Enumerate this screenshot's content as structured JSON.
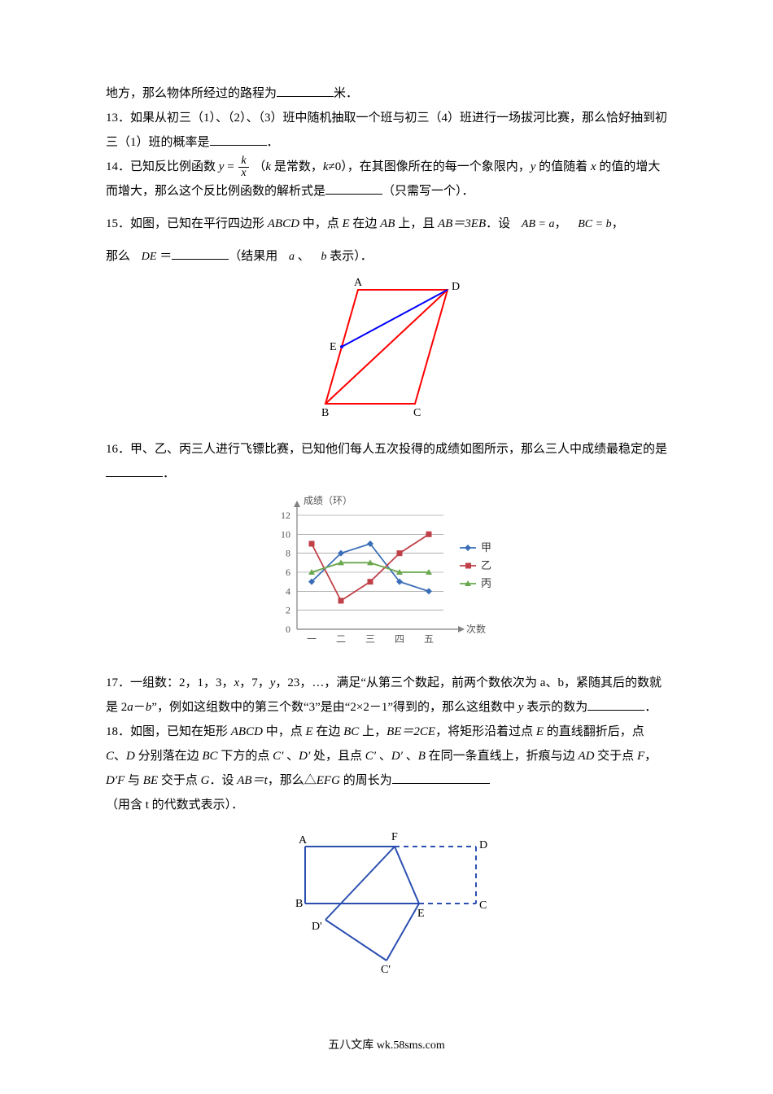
{
  "q12_tail": "地方，那么物体所经过的路程为",
  "q12_unit": "米．",
  "q13": "13．如果从初三（1）、（2）、（3）班中随机抽取一个班与初三（4）班进行一场拔河比赛，那么恰好抽到初三（1）班的概率是",
  "q13_end": "．",
  "q14_a": "14．已知反比例函数 ",
  "q14_y": "y",
  "q14_eq": " = ",
  "q14_b": "（",
  "q14_k": "k",
  "q14_c": " 是常数，",
  "q14_d": "≠0），在其图像所在的每一个象限内，",
  "q14_e": " 的值随着 ",
  "q14_x": "x",
  "q14_f": " 的值的增大而增大，那么这个反比例函数的解析式是",
  "q14_g": "（只需写一个）．",
  "q15_a": "15．如图，已知在平行四边形 ",
  "q15_abcd": "ABCD",
  "q15_b": " 中，点 ",
  "q15_E": "E",
  "q15_c": " 在边 ",
  "q15_AB": "AB",
  "q15_d": " 上，且 ",
  "q15_eqn1": "AB＝3EB",
  "q15_e": "．设 ",
  "q15_ABvec": "AB = a",
  "q15_BCvec": "BC = b",
  "q15_comma": "，",
  "q15_f": "那么 ",
  "q15_DE": "DE",
  "q15_g": " ＝",
  "q15_h": "（结果用 ",
  "q15_avar": "a",
  "q15_i": " 、",
  "q15_bvar": "b",
  "q15_j": " 表示）．",
  "fig15": {
    "labels": {
      "A": "A",
      "B": "B",
      "C": "C",
      "D": "D",
      "E": "E"
    },
    "stroke_red": "#ff0000",
    "stroke_blue": "#0000ff",
    "stroke_w": 2
  },
  "q16_a": "16．甲、乙、丙三人进行飞镖比赛，已知他们每人五次投得的成绩如图所示，那么三人中成绩最稳定的是",
  "q16_b": "．",
  "chart16": {
    "y_label": "成绩（环）",
    "x_label": "次数",
    "y_ticks": [
      "0",
      "2",
      "4",
      "6",
      "8",
      "10",
      "12"
    ],
    "x_ticks": [
      "一",
      "二",
      "三",
      "四",
      "五"
    ],
    "axis_color": "#808080",
    "grid_color": "#808080",
    "tick_font": 12,
    "series": {
      "jia": {
        "label": "甲",
        "color": "#3a6fb7",
        "marker": "diamond",
        "pts": [
          5,
          8,
          9,
          5,
          4
        ]
      },
      "yi": {
        "label": "乙",
        "color": "#c04048",
        "marker": "square",
        "pts": [
          9,
          3,
          5,
          8,
          10
        ]
      },
      "bing": {
        "label": "丙",
        "color": "#6aa84f",
        "marker": "triangle",
        "pts": [
          6,
          7,
          7,
          6,
          6
        ]
      }
    }
  },
  "q17_a": "17．一组数：2，1，3，",
  "q17_x": "x",
  "q17_b": "，7，",
  "q17_y": "y",
  "q17_c": "，23，…，满足“从第三个数起，前两个数依次为 a、b，紧随其后的数就是 2",
  "q17_av": "a",
  "q17_d": "－",
  "q17_bv": "b",
  "q17_e": "”，例如这组数中的第三个数“3”是由“2×2－1”得到的，那么这组数中 ",
  "q17_yv": "y",
  "q17_f": " 表示的数为",
  "q17_g": "．",
  "q18_a": "18．如图，已知在矩形 ",
  "q18_ABCD": "ABCD",
  "q18_b": " 中，点 ",
  "q18_E": "E",
  "q18_c": " 在边 ",
  "q18_BC": "BC",
  "q18_d": " 上，",
  "q18_eqn1": "BE＝2CE",
  "q18_e": "，将矩形沿着过点 ",
  "q18_f": " 的直线翻折后，点 ",
  "q18_C": "C",
  "q18_g": "、",
  "q18_D": "D",
  "q18_h": " 分别落在边 ",
  "q18_i": " 下方的点 ",
  "q18_Cp": "C′",
  "q18_j": " 、",
  "q18_Dp": "D′",
  "q18_k": " 处，且点 ",
  "q18_l": " 、",
  "q18_Bv": "B",
  "q18_m": " 在同一条直线上，折痕与边 ",
  "q18_AD": "AD",
  "q18_n": " 交于点 ",
  "q18_F": "F",
  "q18_o": "，",
  "q18_DpF": "D′F",
  "q18_p": " 与 ",
  "q18_BE": "BE",
  "q18_q": " 交于点 ",
  "q18_G": "G",
  "q18_r": "．设 ",
  "q18_eqn2": "AB＝t",
  "q18_s": "，那么△",
  "q18_EFG": "EFG",
  "q18_t": " 的周长为",
  "q18_u": "（用含 t 的代数式表示）．",
  "fig18": {
    "labels": {
      "A": "A",
      "B": "B",
      "C": "C",
      "D": "D",
      "E": "E",
      "F": "F",
      "Cp": "C'",
      "Dp": "D'"
    },
    "solid_color": "#2a4fb0",
    "dash_color": "#2a4fb0",
    "stroke_w": 2
  },
  "footer": "五八文库 wk.58sms.com"
}
